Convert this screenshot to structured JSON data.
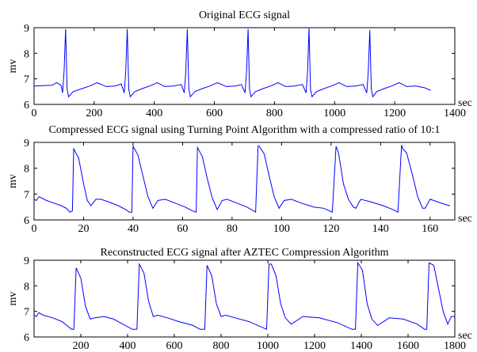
{
  "chart_data": [
    {
      "type": "line",
      "title": "Original ECG signal",
      "xlabel": "sec",
      "ylabel": "mv",
      "xlim": [
        0,
        1400
      ],
      "ylim": [
        6,
        9
      ],
      "xticks": [
        0,
        200,
        400,
        600,
        800,
        1000,
        1200,
        1400
      ],
      "yticks": [
        6,
        7,
        8,
        9
      ],
      "grid": false,
      "series": [
        {
          "color": "#0000ff",
          "x": [
            0,
            60,
            75,
            90,
            95,
            100,
            105,
            110,
            115,
            130,
            160,
            185,
            210,
            240,
            270,
            290,
            300,
            305,
            310,
            315,
            320,
            335,
            360,
            385,
            410,
            435,
            465,
            490,
            500,
            505,
            510,
            515,
            520,
            535,
            560,
            585,
            610,
            640,
            670,
            690,
            702,
            707,
            712,
            717,
            722,
            737,
            762,
            787,
            812,
            837,
            867,
            893,
            905,
            910,
            915,
            920,
            925,
            940,
            965,
            990,
            1015,
            1040,
            1070,
            1095,
            1107,
            1112,
            1117,
            1122,
            1127,
            1140,
            1165,
            1190,
            1215,
            1240,
            1270,
            1300,
            1320
          ],
          "y": [
            6.72,
            6.75,
            6.85,
            6.75,
            6.45,
            7.3,
            8.95,
            6.6,
            6.3,
            6.5,
            6.62,
            6.72,
            6.85,
            6.7,
            6.72,
            6.8,
            6.45,
            7.3,
            8.95,
            6.6,
            6.3,
            6.5,
            6.62,
            6.72,
            6.85,
            6.7,
            6.72,
            6.78,
            6.45,
            7.3,
            8.95,
            6.6,
            6.3,
            6.5,
            6.62,
            6.72,
            6.85,
            6.7,
            6.72,
            6.78,
            6.45,
            7.3,
            8.95,
            6.6,
            6.3,
            6.5,
            6.62,
            6.72,
            6.85,
            6.7,
            6.72,
            6.78,
            6.45,
            7.3,
            8.98,
            6.6,
            6.3,
            6.5,
            6.62,
            6.72,
            6.85,
            6.7,
            6.72,
            6.78,
            6.45,
            7.3,
            8.9,
            6.6,
            6.3,
            6.5,
            6.62,
            6.72,
            6.85,
            6.7,
            6.72,
            6.65,
            6.55
          ]
        }
      ]
    },
    {
      "type": "line",
      "title": "Compressed ECG signal using Turning  Point Algorithm with a compressed ratio of 10:1",
      "xlabel": "sec",
      "ylabel": "mv",
      "xlim": [
        0,
        170
      ],
      "ylim": [
        6,
        9
      ],
      "xticks": [
        0,
        20,
        40,
        60,
        80,
        100,
        120,
        140,
        160
      ],
      "yticks": [
        6,
        7,
        8,
        9
      ],
      "grid": false,
      "series": [
        {
          "color": "#0000ff",
          "x": [
            0,
            1,
            2,
            3,
            5,
            8,
            11,
            13,
            14.5,
            15.5,
            16,
            18,
            20,
            21.5,
            23,
            25,
            27,
            30,
            34,
            37,
            38.5,
            39.5,
            40,
            42,
            44,
            46,
            48,
            50,
            53,
            57,
            61,
            64,
            65.5,
            66,
            68,
            70,
            72,
            74,
            76,
            78,
            82,
            86,
            89.5,
            90.5,
            91,
            93,
            95,
            97,
            99,
            101,
            104,
            108,
            113,
            117,
            120.5,
            122,
            123,
            125,
            127,
            129,
            130,
            132,
            136,
            141,
            145,
            147,
            148.5,
            149,
            150.5,
            153,
            155,
            157,
            158,
            160,
            163,
            166,
            168
          ],
          "y": [
            6.8,
            6.75,
            6.9,
            6.85,
            6.75,
            6.65,
            6.55,
            6.45,
            6.3,
            6.35,
            8.75,
            8.4,
            7.4,
            6.75,
            6.55,
            6.8,
            6.8,
            6.7,
            6.55,
            6.4,
            6.3,
            6.3,
            8.85,
            8.5,
            7.7,
            6.9,
            6.45,
            6.75,
            6.8,
            6.65,
            6.5,
            6.35,
            6.3,
            8.8,
            8.45,
            7.6,
            6.85,
            6.4,
            6.75,
            6.8,
            6.65,
            6.5,
            6.3,
            8.85,
            8.85,
            8.55,
            7.7,
            6.9,
            6.45,
            6.75,
            6.8,
            6.65,
            6.5,
            6.45,
            6.3,
            8.85,
            8.6,
            7.4,
            6.8,
            6.5,
            6.45,
            6.8,
            6.7,
            6.55,
            6.4,
            6.3,
            8.9,
            8.75,
            8.6,
            7.7,
            6.9,
            6.45,
            6.45,
            6.8,
            6.7,
            6.6,
            6.55
          ]
        }
      ]
    },
    {
      "type": "line",
      "title": "Reconstructed ECG signal after AZTEC Compression  Algorithm",
      "xlabel": "sec",
      "ylabel": "mv",
      "xlim": [
        0,
        1800
      ],
      "ylim": [
        6,
        9
      ],
      "xticks": [
        200,
        400,
        600,
        800,
        1000,
        1200,
        1400,
        1600,
        1800
      ],
      "yticks": [
        6,
        7,
        8,
        9
      ],
      "grid": false,
      "series": [
        {
          "color": "#0000ff",
          "x": [
            0,
            10,
            20,
            40,
            80,
            120,
            160,
            170,
            180,
            200,
            220,
            240,
            260,
            300,
            340,
            380,
            420,
            440,
            450,
            470,
            490,
            510,
            530,
            570,
            620,
            680,
            710,
            730,
            740,
            760,
            780,
            800,
            820,
            860,
            920,
            970,
            995,
            1005,
            1015,
            1035,
            1055,
            1075,
            1100,
            1150,
            1220,
            1300,
            1360,
            1375,
            1385,
            1405,
            1425,
            1445,
            1470,
            1520,
            1580,
            1640,
            1670,
            1680,
            1690,
            1710,
            1730,
            1750,
            1770,
            1785,
            1800
          ],
          "y": [
            6.85,
            6.8,
            6.95,
            6.85,
            6.75,
            6.6,
            6.3,
            6.3,
            8.7,
            8.3,
            7.2,
            6.7,
            6.75,
            6.8,
            6.7,
            6.5,
            6.3,
            6.3,
            8.85,
            8.5,
            7.4,
            6.8,
            6.85,
            6.75,
            6.6,
            6.45,
            6.3,
            6.3,
            8.8,
            8.4,
            7.3,
            6.8,
            6.85,
            6.75,
            6.6,
            6.4,
            6.3,
            8.85,
            8.85,
            8.4,
            7.3,
            6.75,
            6.5,
            6.8,
            6.75,
            6.55,
            6.3,
            6.3,
            8.9,
            8.6,
            7.3,
            6.7,
            6.45,
            6.75,
            6.7,
            6.5,
            6.3,
            6.3,
            8.9,
            8.8,
            7.9,
            7.0,
            6.5,
            6.8,
            6.8
          ]
        }
      ]
    }
  ]
}
